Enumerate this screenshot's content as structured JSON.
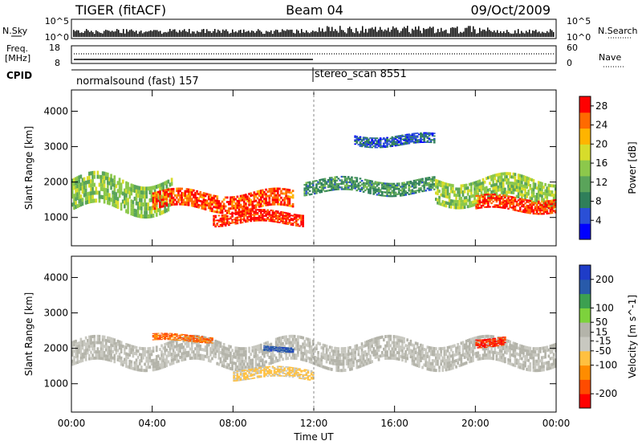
{
  "header": {
    "radar": "TIGER (fitACF)",
    "beam": "Beam 04",
    "date": "09/Oct/2009"
  },
  "nsky_panel": {
    "left_label": "N.Sky",
    "left_ticks": [
      "10^5",
      "10^0"
    ],
    "right_label": "N.Search",
    "right_ticks": [
      "10^5",
      "10^0"
    ]
  },
  "freq_panel": {
    "left_label_1": "Freq.",
    "left_label_2": "[MHz]",
    "left_ticks": [
      "18",
      "8"
    ],
    "right_label": "Nave",
    "right_ticks": [
      "60",
      "0"
    ]
  },
  "cpid_panel": {
    "label": "CPID",
    "programs": [
      {
        "name": "normalsound (fast) 157",
        "start": "00:00"
      },
      {
        "name": "stereo_scan 8551",
        "start": "12:00"
      }
    ]
  },
  "colors": {
    "power_scale": [
      "#0000ff",
      "#2a4fd6",
      "#2f7f5a",
      "#5aa45a",
      "#8cc84b",
      "#d7dc2b",
      "#ffb400",
      "#ff6a00",
      "#ff0000"
    ],
    "velocity_scale": [
      "#ff0000",
      "#ff4b00",
      "#ff8c00",
      "#ffc040",
      "#c8c8c0",
      "#b4b4aa",
      "#7dd23c",
      "#3ca050",
      "#285aaa",
      "#1e3cc8"
    ]
  },
  "chart_data": [
    {
      "type": "heatmap",
      "title": "Power",
      "xlabel": "Time UT",
      "ylabel": "Slant Range [km]",
      "xlim": [
        "00:00",
        "24:00"
      ],
      "ylim": [
        200,
        4600
      ],
      "x_ticks": [
        "00:00",
        "04:00",
        "08:00",
        "12:00",
        "16:00",
        "20:00",
        "00:00"
      ],
      "y_ticks": [
        1000,
        2000,
        3000,
        4000
      ],
      "colorbar": {
        "label": "Power [dB]",
        "ticks": [
          4,
          8,
          12,
          16,
          20,
          24,
          28
        ],
        "range": [
          0,
          30
        ]
      },
      "features": [
        {
          "time_start": 0,
          "time_end": 5,
          "range_center": 1700,
          "range_width": 900,
          "power": 14
        },
        {
          "time_start": 4,
          "time_end": 11,
          "range_center": 1500,
          "range_width": 500,
          "power": 26
        },
        {
          "time_start": 7,
          "time_end": 11.5,
          "range_center": 1000,
          "range_width": 350,
          "power": 28
        },
        {
          "time_start": 11.5,
          "time_end": 18,
          "range_center": 1900,
          "range_width": 400,
          "power": 10
        },
        {
          "time_start": 14,
          "time_end": 18,
          "range_center": 3200,
          "range_width": 300,
          "power": 6
        },
        {
          "time_start": 18,
          "time_end": 24,
          "range_center": 1800,
          "range_width": 700,
          "power": 15
        },
        {
          "time_start": 20,
          "time_end": 24,
          "range_center": 1400,
          "range_width": 400,
          "power": 27
        }
      ]
    },
    {
      "type": "heatmap",
      "title": "Velocity",
      "xlabel": "Time UT",
      "ylabel": "Slant Range [km]",
      "xlim": [
        "00:00",
        "24:00"
      ],
      "ylim": [
        200,
        4600
      ],
      "x_ticks": [
        "00:00",
        "04:00",
        "08:00",
        "12:00",
        "16:00",
        "20:00",
        "00:00"
      ],
      "y_ticks": [
        1000,
        2000,
        3000,
        4000
      ],
      "colorbar": {
        "label": "Velocity [m s^-1]",
        "ticks": [
          200,
          100,
          50,
          15,
          -15,
          -50,
          -100,
          -200
        ],
        "range": [
          -250,
          250
        ]
      },
      "features": [
        {
          "time_start": 0,
          "time_end": 24,
          "range_center": 1900,
          "range_width": 700,
          "velocity": 0
        },
        {
          "time_start": 8,
          "time_end": 12,
          "range_center": 1300,
          "range_width": 300,
          "velocity": -60
        },
        {
          "time_start": 4,
          "time_end": 7,
          "range_center": 2300,
          "range_width": 200,
          "velocity": -150
        },
        {
          "time_start": 9.5,
          "time_end": 11,
          "range_center": 2000,
          "range_width": 150,
          "velocity": 180
        },
        {
          "time_start": 20,
          "time_end": 21.5,
          "range_center": 2200,
          "range_width": 250,
          "velocity": -200
        }
      ]
    }
  ]
}
